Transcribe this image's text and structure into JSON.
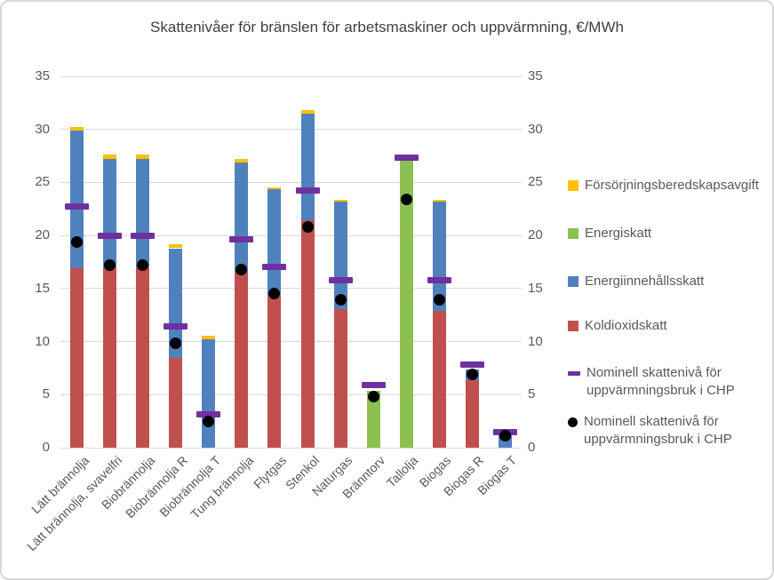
{
  "chart_data": {
    "type": "bar",
    "stacked": true,
    "title": "Skattenivåer för bränslen för arbetsmaskiner och uppvärmning, €/MWh",
    "unit": "€/MWh",
    "ylim": [
      0,
      35
    ],
    "yticks": [
      0,
      5,
      10,
      15,
      20,
      25,
      30,
      35
    ],
    "grid": true,
    "dual_y_axis": true,
    "legend_position": "right",
    "x_label_rotation_deg": 45,
    "categories": [
      "Lätt brännolja",
      "Lätt brännolja, svavelfri",
      "Biobrännolja",
      "Biobrännolja R",
      "Biobrännolja T",
      "Tung brännolja",
      "Flytgas",
      "Stenkol",
      "Naturgas",
      "Bränntorv",
      "Tallolja",
      "Biogas",
      "Biogas R",
      "Biogas T"
    ],
    "series": [
      {
        "name": "Koldioxidskatt",
        "type": "bar",
        "color": "#C0504D",
        "values": [
          16.9,
          16.9,
          16.9,
          8.45,
          0,
          16.6,
          14.2,
          21.4,
          13.1,
          0,
          0,
          12.9,
          6.4,
          0
        ]
      },
      {
        "name": "Energiinnehållsskatt",
        "type": "bar",
        "color": "#4F81BD",
        "values": [
          13.0,
          10.35,
          10.35,
          10.35,
          10.2,
          10.3,
          10.2,
          10.1,
          10.1,
          0,
          0,
          10.3,
          1.0,
          1.2
        ]
      },
      {
        "name": "Energiskatt",
        "type": "bar",
        "color": "#8CC152",
        "values": [
          0,
          0,
          0,
          0,
          0,
          0,
          0,
          0,
          0,
          5.4,
          27.2,
          0,
          0,
          0
        ]
      },
      {
        "name": "Försörjningsberedskapsavgift",
        "type": "bar",
        "color": "#FFC000",
        "values": [
          0.35,
          0.35,
          0.35,
          0.35,
          0.35,
          0.3,
          0.15,
          0.3,
          0.2,
          0,
          0,
          0.2,
          0,
          0
        ]
      },
      {
        "name": "Nominell skattenivå för uppvärmningsbruk i CHP",
        "type": "dash-marker",
        "color": "#7030A0",
        "values": [
          22.7,
          20.0,
          20.0,
          11.4,
          3.1,
          19.6,
          17.0,
          24.2,
          15.8,
          5.9,
          27.3,
          15.8,
          7.8,
          1.5
        ]
      },
      {
        "name": "Nominell skattenivå för uppvärmningsbruk i CHP",
        "type": "dot-marker",
        "color": "#000000",
        "values": [
          19.4,
          17.2,
          17.2,
          9.8,
          2.5,
          16.8,
          14.5,
          20.8,
          13.9,
          4.8,
          23.4,
          13.9,
          6.9,
          1.1
        ]
      }
    ],
    "legend": [
      {
        "label": "Försörjningsberedskapsavgift",
        "marker": "square",
        "color": "#FFC000"
      },
      {
        "label": "Energiskatt",
        "marker": "square",
        "color": "#8CC152"
      },
      {
        "label": "Energiinnehållsskatt",
        "marker": "square",
        "color": "#4F81BD"
      },
      {
        "label": "Koldioxidskatt",
        "marker": "square",
        "color": "#C0504D"
      },
      {
        "label": "Nominell skattenivå för uppvärmningsbruk i CHP",
        "marker": "dash",
        "color": "#7030A0"
      },
      {
        "label": "Nominell skattenivå för uppvärmningsbruk i CHP",
        "marker": "dot",
        "color": "#000000"
      }
    ],
    "colors": {
      "gridline": "#D9D9D9",
      "axis_text": "#595959",
      "title_text": "#404040",
      "frame_border": "#D8D8D8",
      "background": "#FFFFFF"
    }
  }
}
